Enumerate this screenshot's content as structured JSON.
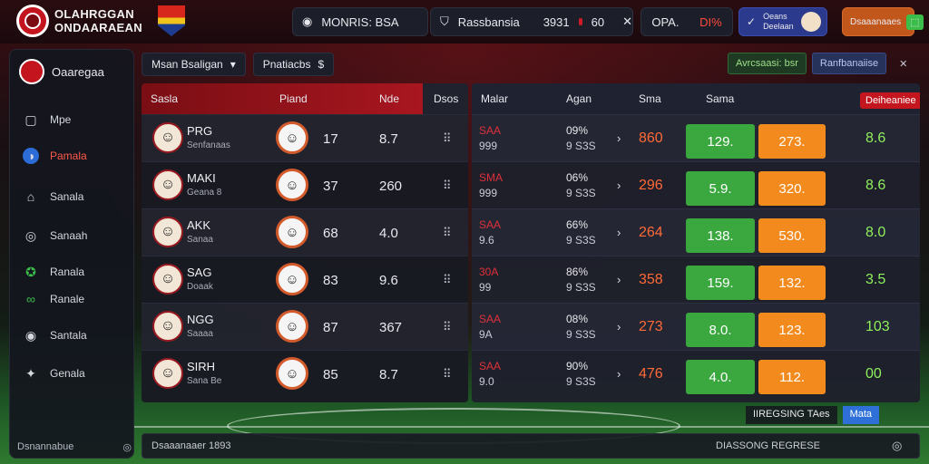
{
  "header": {
    "brand_line1": "OLAHRGGAN",
    "brand_line2": "ONDAARAEAN",
    "search_text": "MONRIS: BSA",
    "match_label": "Rassbansia",
    "match_score_a": "3931",
    "match_score_b": "60",
    "odds_a": "OPA.",
    "odds_b": "DI%",
    "user_line1": "Oeans",
    "user_line2": "Deelaan",
    "wallet_label": "Dsaaanaaes"
  },
  "sidebar": {
    "title": "Oaaregaa",
    "items": [
      {
        "label": "Mpe",
        "icon": "square-icon",
        "glyph": "▢"
      },
      {
        "label": "Pamala",
        "icon": "globe-icon",
        "glyph": "◑"
      },
      {
        "label": "Sanala",
        "icon": "shirt-icon",
        "glyph": "⌂"
      },
      {
        "label": "Sanaah",
        "icon": "compass-icon",
        "glyph": "◎"
      },
      {
        "label": "Ranala",
        "icon": "ball-icon",
        "glyph": "✪"
      },
      {
        "label": "Ranale",
        "icon": "link-icon",
        "glyph": "∞"
      },
      {
        "label": "Santala",
        "icon": "target-icon",
        "glyph": "◉"
      },
      {
        "label": "Genala",
        "icon": "star-icon",
        "glyph": "✦"
      }
    ],
    "footer": "Dsnannabue"
  },
  "toolbar": {
    "dropdown": "Msan Bsaligan",
    "filter": "Pnatiacbs"
  },
  "top_actions": {
    "btn1": "Avrcsaasi: bsr",
    "btn2": "Ranfbanaiise"
  },
  "left_table": {
    "columns": [
      "Sasla",
      "Piand",
      "Nde",
      "Dsos"
    ],
    "rows": [
      {
        "name": "PRG",
        "sub": "Senfanaas",
        "n1": "17",
        "n2": "8.7"
      },
      {
        "name": "MAKI",
        "sub": "Geana 8",
        "n1": "37",
        "n2": "260"
      },
      {
        "name": "AKK",
        "sub": "Sanaa",
        "n1": "68",
        "n2": "4.0"
      },
      {
        "name": "SAG",
        "sub": "Doaak",
        "n1": "83",
        "n2": "9.6"
      },
      {
        "name": "NGG",
        "sub": "Saaaa",
        "n1": "87",
        "n2": "367"
      },
      {
        "name": "SIRH",
        "sub": "Sana Be",
        "n1": "85",
        "n2": "8.7"
      }
    ]
  },
  "right_table": {
    "columns": [
      "Malar",
      "Agan",
      "Sma",
      "Sama"
    ],
    "tag": "Deiheaniee",
    "rows": [
      {
        "r1": "SAA",
        "r2": "999",
        "p1": "09%",
        "p2": "9 S3S",
        "val": "860",
        "green": "129.",
        "orange": "273.",
        "end": "8.6"
      },
      {
        "r1": "SMA",
        "r2": "999",
        "p1": "06%",
        "p2": "9 S3S",
        "val": "296",
        "green": "5.9.",
        "orange": "320.",
        "end": "8.6"
      },
      {
        "r1": "SAA",
        "r2": "9.6",
        "p1": "66%",
        "p2": "9 S3S",
        "val": "264",
        "green": "138.",
        "orange": "530.",
        "end": "8.0"
      },
      {
        "r1": "30A",
        "r2": "99",
        "p1": "86%",
        "p2": "9 S3S",
        "val": "358",
        "green": "159.",
        "orange": "132.",
        "end": "3.5"
      },
      {
        "r1": "SAA",
        "r2": "9A",
        "p1": "08%",
        "p2": "9 S3S",
        "val": "273",
        "green": "8.0.",
        "orange": "123.",
        "end": "103"
      },
      {
        "r1": "SAA",
        "r2": "9.0",
        "p1": "90%",
        "p2": "9 S3S",
        "val": "476",
        "green": "4.0.",
        "orange": "112.",
        "end": "00"
      }
    ]
  },
  "bottom": {
    "left": "Dsaaanaaer 1893",
    "right": "DIASSONG REGRESE"
  },
  "status": {
    "a": "IIREGSING TAes",
    "b": "Mata"
  },
  "colors": {
    "accent_red": "#c4151f",
    "odds_green": "#3aa83f",
    "odds_orange": "#f28a1e",
    "primary_blue": "#2b3a8c"
  }
}
